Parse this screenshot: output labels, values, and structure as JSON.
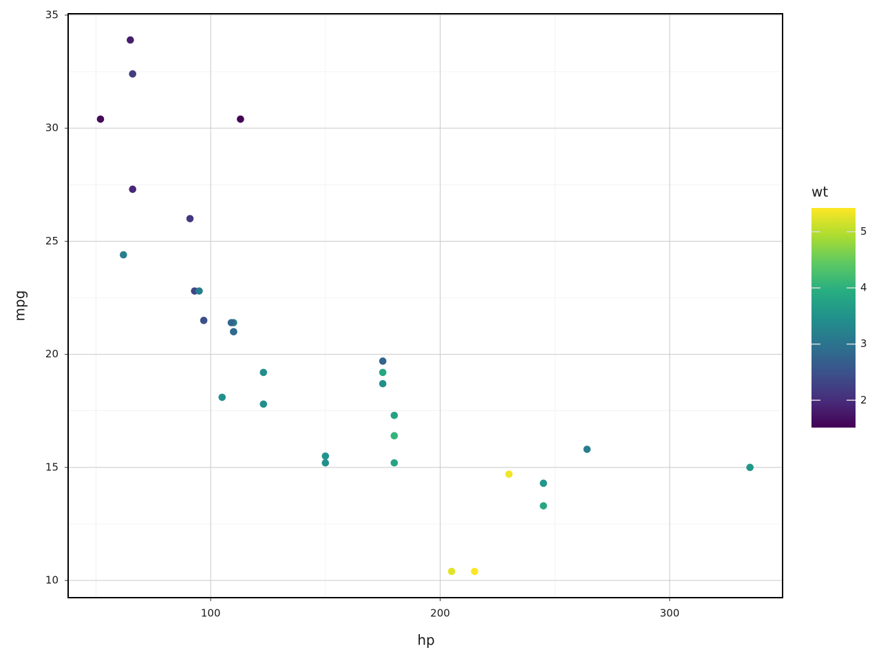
{
  "chart_data": {
    "type": "scatter",
    "x_label": "hp",
    "y_label": "mpg",
    "color_label": "wt",
    "x": [
      110,
      110,
      93,
      110,
      175,
      105,
      245,
      62,
      95,
      123,
      123,
      180,
      180,
      180,
      205,
      215,
      230,
      66,
      52,
      65,
      97,
      150,
      150,
      245,
      175,
      66,
      91,
      113,
      264,
      175,
      335,
      109
    ],
    "y": [
      21.0,
      21.0,
      22.8,
      21.4,
      18.7,
      18.1,
      14.3,
      24.4,
      22.8,
      19.2,
      17.8,
      16.4,
      17.3,
      15.2,
      10.4,
      10.4,
      14.7,
      32.4,
      30.4,
      33.9,
      21.5,
      15.5,
      15.2,
      13.3,
      19.2,
      27.3,
      26.0,
      30.4,
      15.8,
      19.7,
      15.0,
      21.4
    ],
    "color_values": [
      2.62,
      2.875,
      2.32,
      3.215,
      3.44,
      3.46,
      3.57,
      3.19,
      3.15,
      3.44,
      3.44,
      4.07,
      3.73,
      3.78,
      5.25,
      5.424,
      5.345,
      2.2,
      1.615,
      1.835,
      2.465,
      3.52,
      3.435,
      3.84,
      3.845,
      1.935,
      2.14,
      1.513,
      3.17,
      2.77,
      3.57,
      2.78
    ],
    "colormap": [
      "#440154",
      "#472d7b",
      "#3b528b",
      "#2c728e",
      "#21918c",
      "#28ae80",
      "#5ec962",
      "#addc30",
      "#fde725"
    ],
    "clim": [
      1.513,
      5.424
    ],
    "cticks": [
      2,
      3,
      4,
      5
    ],
    "xlim": [
      37.9,
      349.2
    ],
    "xticks": [
      100,
      200,
      300
    ],
    "xminor": [
      50,
      150,
      250
    ],
    "ylim": [
      9.24,
      35.06
    ],
    "yticks": [
      10,
      15,
      20,
      25,
      30,
      35
    ],
    "yminor": [
      12.5,
      17.5,
      22.5,
      27.5,
      32.5
    ],
    "grid": true
  }
}
